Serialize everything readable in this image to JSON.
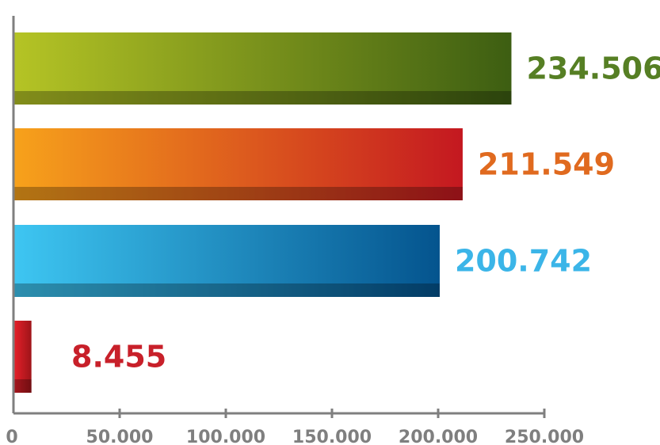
{
  "chart_data": {
    "type": "bar",
    "orientation": "horizontal",
    "categories": [
      "",
      "",
      "",
      ""
    ],
    "values": [
      234506,
      211549,
      200742,
      8455
    ],
    "value_labels": [
      "234.506",
      "211.549",
      "200.742",
      "8.455"
    ],
    "title": "",
    "xlabel": "",
    "ylabel": "",
    "xlim": [
      0,
      250000
    ],
    "x_ticks": [
      0,
      50000,
      100000,
      150000,
      200000,
      250000
    ],
    "x_tick_labels": [
      "0",
      "50.000",
      "100.000",
      "150.000",
      "200.000",
      "250.000"
    ],
    "grid": false,
    "legend": "none",
    "colors": [
      {
        "start": "#b5c425",
        "end": "#3d5e12",
        "label": "#567f24"
      },
      {
        "start": "#f7a21b",
        "end": "#c41820",
        "label": "#e06a1f"
      },
      {
        "start": "#3ec6f2",
        "end": "#04548e",
        "label": "#3bb5e8"
      },
      {
        "start": "#e8202a",
        "end": "#9e1419",
        "label": "#c8202a"
      }
    ]
  }
}
